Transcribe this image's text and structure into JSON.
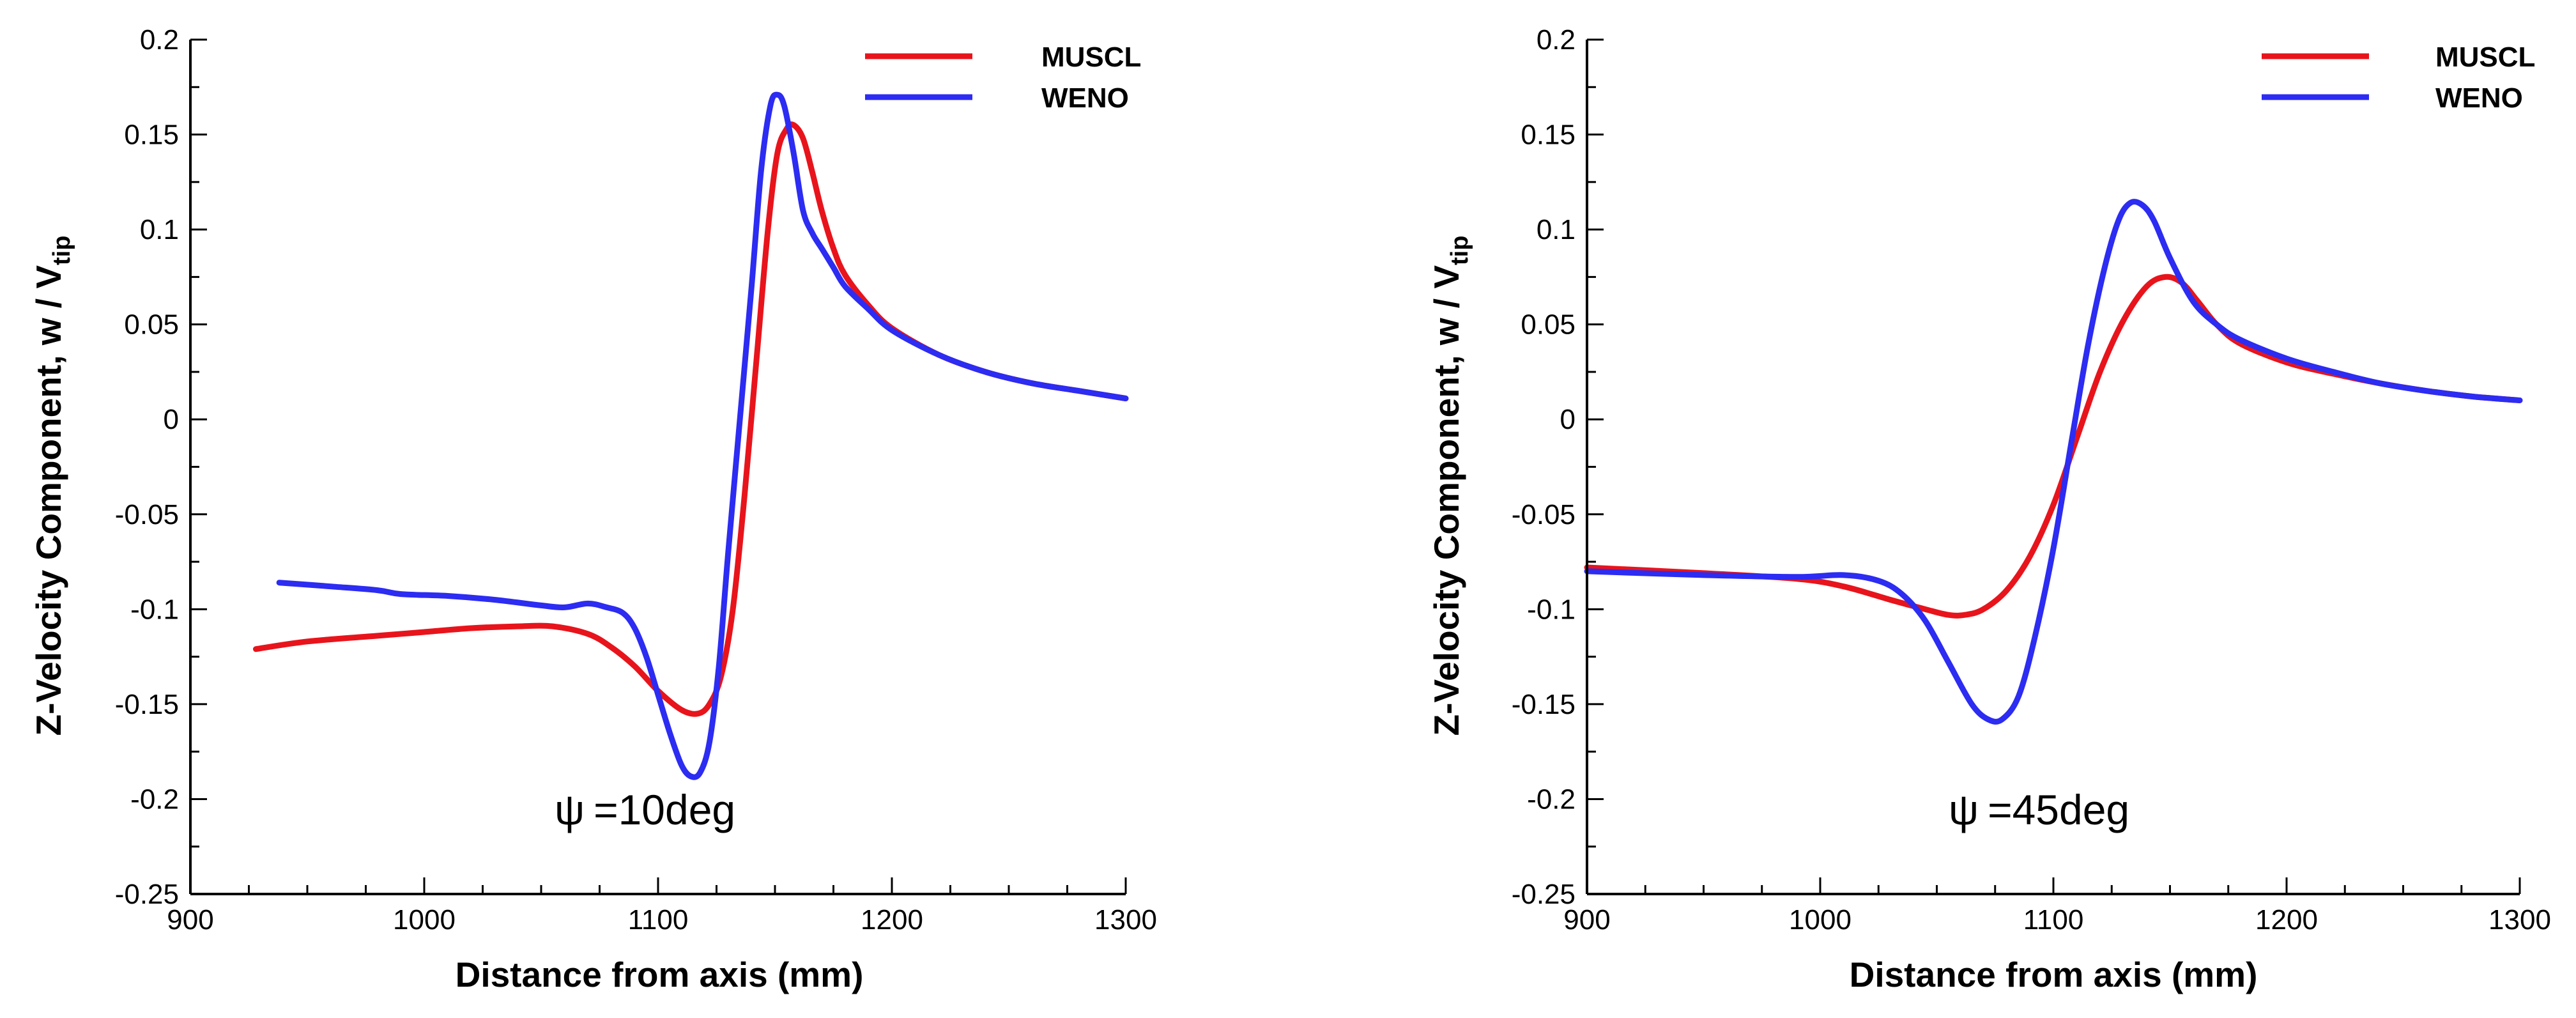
{
  "colors": {
    "muscl": "#e8141c",
    "weno": "#2c2cf2",
    "axis": "#000000"
  },
  "chart_data": [
    {
      "type": "line",
      "title": "",
      "xlabel": "Distance from axis (mm)",
      "ylabel": "Z-Velocity Component, w / V",
      "ylabel_sub": "tip",
      "xlim": [
        900,
        1300
      ],
      "ylim": [
        -0.25,
        0.2
      ],
      "xticks": [
        900,
        1000,
        1100,
        1200,
        1300
      ],
      "xtick_labels": [
        "900",
        "1000",
        "1100",
        "1200",
        "1300"
      ],
      "yticks": [
        -0.25,
        -0.2,
        -0.15,
        -0.1,
        -0.05,
        0,
        0.05,
        0.1,
        0.15,
        0.2
      ],
      "ytick_labels": [
        "-0.25",
        "-0.2",
        "-0.15",
        "-0.1",
        "-0.05",
        "0",
        "0.05",
        "0.1",
        "0.15",
        "0.2"
      ],
      "legend_position": "top-right",
      "annotation": {
        "symbol": "ψ",
        "text": "=10deg",
        "x": 1000,
        "y": -0.208
      },
      "series": [
        {
          "name": "MUSCL",
          "color": "#e8141c",
          "x": [
            928,
            950,
            980,
            1000,
            1020,
            1040,
            1055,
            1070,
            1080,
            1090,
            1100,
            1110,
            1117,
            1122,
            1127,
            1132,
            1137,
            1142,
            1147,
            1151,
            1155,
            1158,
            1162,
            1166,
            1170,
            1175,
            1180,
            1190,
            1200,
            1220,
            1240,
            1260,
            1280,
            1300
          ],
          "y": [
            -0.121,
            -0.117,
            -0.114,
            -0.112,
            -0.11,
            -0.109,
            -0.109,
            -0.113,
            -0.12,
            -0.13,
            -0.143,
            -0.153,
            -0.155,
            -0.15,
            -0.135,
            -0.1,
            -0.04,
            0.03,
            0.1,
            0.14,
            0.153,
            0.155,
            0.148,
            0.13,
            0.11,
            0.09,
            0.076,
            0.06,
            0.048,
            0.034,
            0.025,
            0.019,
            0.015,
            0.011
          ]
        },
        {
          "name": "WENO",
          "color": "#2c2cf2",
          "x": [
            938,
            960,
            980,
            990,
            1010,
            1030,
            1050,
            1060,
            1070,
            1078,
            1085,
            1090,
            1095,
            1100,
            1105,
            1110,
            1114,
            1118,
            1122,
            1126,
            1130,
            1135,
            1140,
            1144,
            1148,
            1151,
            1154,
            1158,
            1162,
            1166,
            1170,
            1175,
            1180,
            1190,
            1200,
            1220,
            1240,
            1260,
            1280,
            1300
          ],
          "y": [
            -0.086,
            -0.088,
            -0.09,
            -0.092,
            -0.093,
            -0.095,
            -0.098,
            -0.099,
            -0.097,
            -0.099,
            -0.102,
            -0.11,
            -0.125,
            -0.145,
            -0.165,
            -0.182,
            -0.188,
            -0.186,
            -0.17,
            -0.13,
            -0.07,
            0.0,
            0.07,
            0.13,
            0.165,
            0.171,
            0.165,
            0.14,
            0.11,
            0.098,
            0.09,
            0.08,
            0.07,
            0.058,
            0.047,
            0.034,
            0.025,
            0.019,
            0.015,
            0.011
          ]
        }
      ]
    },
    {
      "type": "line",
      "title": "",
      "xlabel": "Distance from axis (mm)",
      "ylabel": "Z-Velocity Component, w / V",
      "ylabel_sub": "tip",
      "xlim": [
        900,
        1300
      ],
      "ylim": [
        -0.25,
        0.2
      ],
      "xticks": [
        900,
        1000,
        1100,
        1200,
        1300
      ],
      "xtick_labels": [
        "900",
        "1000",
        "1100",
        "1200",
        "1300"
      ],
      "yticks": [
        -0.25,
        -0.2,
        -0.15,
        -0.1,
        -0.05,
        0,
        0.05,
        0.1,
        0.15,
        0.2
      ],
      "ytick_labels": [
        "-0.25",
        "-0.2",
        "-0.15",
        "-0.1",
        "-0.05",
        "0",
        "0.05",
        "0.1",
        "0.15",
        "0.2"
      ],
      "legend_position": "top-right",
      "annotation": {
        "symbol": "ψ",
        "text": "=45deg",
        "x": 1000,
        "y": -0.208
      },
      "series": [
        {
          "name": "MUSCL",
          "color": "#e8141c",
          "x": [
            900,
            950,
            990,
            1010,
            1030,
            1045,
            1055,
            1062,
            1070,
            1080,
            1090,
            1100,
            1110,
            1120,
            1130,
            1140,
            1148,
            1155,
            1162,
            1170,
            1180,
            1200,
            1220,
            1240,
            1260,
            1280,
            1300
          ],
          "y": [
            -0.078,
            -0.081,
            -0.084,
            -0.088,
            -0.095,
            -0.1,
            -0.103,
            -0.103,
            -0.1,
            -0.09,
            -0.072,
            -0.045,
            -0.01,
            0.025,
            0.052,
            0.07,
            0.075,
            0.072,
            0.062,
            0.05,
            0.04,
            0.03,
            0.024,
            0.019,
            0.015,
            0.012,
            0.01
          ]
        },
        {
          "name": "WENO",
          "color": "#2c2cf2",
          "x": [
            900,
            950,
            990,
            1010,
            1025,
            1035,
            1045,
            1055,
            1065,
            1072,
            1078,
            1085,
            1092,
            1100,
            1108,
            1115,
            1122,
            1128,
            1133,
            1138,
            1143,
            1150,
            1160,
            1170,
            1180,
            1200,
            1220,
            1240,
            1260,
            1280,
            1300
          ],
          "y": [
            -0.08,
            -0.082,
            -0.083,
            -0.082,
            -0.085,
            -0.092,
            -0.106,
            -0.128,
            -0.15,
            -0.158,
            -0.158,
            -0.146,
            -0.115,
            -0.068,
            -0.01,
            0.04,
            0.08,
            0.105,
            0.114,
            0.113,
            0.105,
            0.085,
            0.062,
            0.05,
            0.042,
            0.032,
            0.025,
            0.019,
            0.015,
            0.012,
            0.01
          ]
        }
      ]
    }
  ]
}
